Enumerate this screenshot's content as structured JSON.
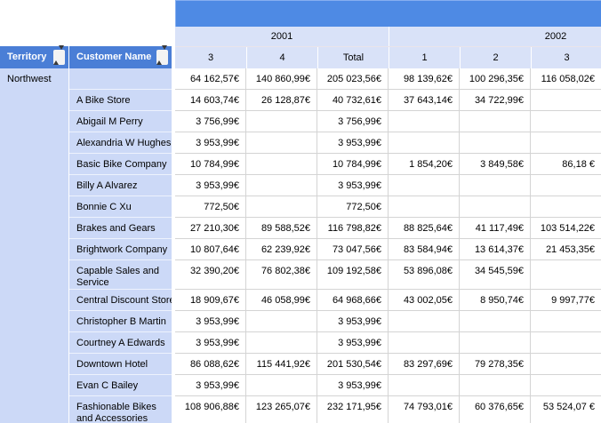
{
  "report": {
    "column_headers": {
      "territory_label": "Territory",
      "customer_label": "Customer Name"
    },
    "year_groups": {
      "y2001": "2001",
      "y2002": "2002"
    },
    "quarters": [
      "3",
      "4",
      "Total",
      "1",
      "2",
      "3"
    ],
    "territory_value": "Northwest",
    "rows": [
      {
        "customer": "",
        "tall": false,
        "values": [
          "64 162,57€",
          "140 860,99€",
          "205 023,56€",
          "98 139,62€",
          "100 296,35€",
          "116 058,02€"
        ]
      },
      {
        "customer": "A Bike Store",
        "tall": false,
        "values": [
          "14 603,74€",
          "26 128,87€",
          "40 732,61€",
          "37 643,14€",
          "34 722,99€",
          ""
        ]
      },
      {
        "customer": "Abigail M Perry",
        "tall": false,
        "values": [
          "3 756,99€",
          "",
          "3 756,99€",
          "",
          "",
          ""
        ]
      },
      {
        "customer": "Alexandria W Hughes",
        "tall": false,
        "values": [
          "3 953,99€",
          "",
          "3 953,99€",
          "",
          "",
          ""
        ]
      },
      {
        "customer": "Basic Bike Company",
        "tall": false,
        "values": [
          "10 784,99€",
          "",
          "10 784,99€",
          "1 854,20€",
          "3 849,58€",
          "86,18 €"
        ]
      },
      {
        "customer": "Billy A Alvarez",
        "tall": false,
        "values": [
          "3 953,99€",
          "",
          "3 953,99€",
          "",
          "",
          ""
        ]
      },
      {
        "customer": "Bonnie C Xu",
        "tall": false,
        "values": [
          "772,50€",
          "",
          "772,50€",
          "",
          "",
          ""
        ]
      },
      {
        "customer": "Brakes and Gears",
        "tall": false,
        "values": [
          "27 210,30€",
          "89 588,52€",
          "116 798,82€",
          "88 825,64€",
          "41 117,49€",
          "103 514,22€"
        ]
      },
      {
        "customer": "Brightwork Company",
        "tall": false,
        "values": [
          "10 807,64€",
          "62 239,92€",
          "73 047,56€",
          "83 584,94€",
          "13 614,37€",
          "21 453,35€"
        ]
      },
      {
        "customer": "Capable Sales and Service",
        "tall": true,
        "values": [
          "32 390,20€",
          "76 802,38€",
          "109 192,58€",
          "53 896,08€",
          "34 545,59€",
          ""
        ]
      },
      {
        "customer": "Central Discount Store",
        "tall": false,
        "values": [
          "18 909,67€",
          "46 058,99€",
          "64 968,66€",
          "43 002,05€",
          "8 950,74€",
          "9 997,77€"
        ]
      },
      {
        "customer": "Christopher B Martin",
        "tall": false,
        "values": [
          "3 953,99€",
          "",
          "3 953,99€",
          "",
          "",
          ""
        ]
      },
      {
        "customer": "Courtney A Edwards",
        "tall": false,
        "values": [
          "3 953,99€",
          "",
          "3 953,99€",
          "",
          "",
          ""
        ]
      },
      {
        "customer": "Downtown Hotel",
        "tall": false,
        "values": [
          "86 088,62€",
          "115 441,92€",
          "201 530,54€",
          "83 297,69€",
          "79 278,35€",
          ""
        ]
      },
      {
        "customer": "Evan C Bailey",
        "tall": false,
        "values": [
          "3 953,99€",
          "",
          "3 953,99€",
          "",
          "",
          ""
        ]
      },
      {
        "customer": "Fashionable Bikes and Accessories",
        "tall": true,
        "values": [
          "108 906,88€",
          "123 265,07€",
          "232 171,95€",
          "74 793,01€",
          "60 376,65€",
          "53 524,07 €"
        ]
      }
    ],
    "icons": {
      "territory_sort": "sort-updown-icon",
      "customer_sort": "sort-updown-icon"
    },
    "colors": {
      "band_blue": "#4e8ae4",
      "header_blue": "#4a7ed6",
      "header_light_blue": "#d9e2f8",
      "row_blue": "#ccd9f7",
      "grid_gray": "#d4d4d4"
    }
  }
}
